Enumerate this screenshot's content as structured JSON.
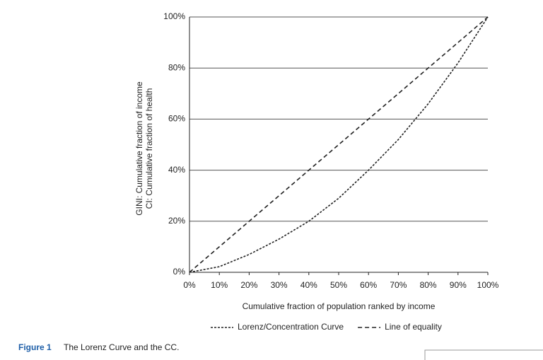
{
  "chart_data": {
    "type": "line",
    "y_label_lines": [
      "GINI: Cumulative fraction of income",
      "CI: Cumulative fraction of health"
    ],
    "x_label": "Cumulative fraction of population ranked by income",
    "x": [
      0,
      10,
      20,
      30,
      40,
      50,
      60,
      70,
      80,
      90,
      100
    ],
    "series": [
      {
        "name": "Lorenz/Concentration Curve",
        "color": "#222222",
        "line_style": "dotted",
        "values": [
          0,
          2.2,
          7,
          13,
          20,
          29,
          40,
          52,
          66,
          82,
          100
        ]
      },
      {
        "name": "Line of equality",
        "color": "#222222",
        "line_style": "dashed",
        "values": [
          0,
          10,
          20,
          30,
          40,
          50,
          60,
          70,
          80,
          90,
          100
        ]
      }
    ],
    "xlim": [
      0,
      100
    ],
    "ylim": [
      0,
      100
    ],
    "xticks": [
      {
        "value": 0,
        "label": "0%"
      },
      {
        "value": 10,
        "label": "10%"
      },
      {
        "value": 20,
        "label": "20%"
      },
      {
        "value": 30,
        "label": "30%"
      },
      {
        "value": 40,
        "label": "40%"
      },
      {
        "value": 50,
        "label": "50%"
      },
      {
        "value": 60,
        "label": "60%"
      },
      {
        "value": 70,
        "label": "70%"
      },
      {
        "value": 80,
        "label": "80%"
      },
      {
        "value": 90,
        "label": "90%"
      },
      {
        "value": 100,
        "label": "100%"
      }
    ],
    "yticks": [
      {
        "value": 0,
        "label": "0%"
      },
      {
        "value": 20,
        "label": "20%"
      },
      {
        "value": 40,
        "label": "40%"
      },
      {
        "value": 60,
        "label": "60%"
      },
      {
        "value": 80,
        "label": "80%"
      },
      {
        "value": 100,
        "label": "100%"
      }
    ],
    "grid": true,
    "legend": "bottom"
  },
  "caption": {
    "label": "Figure 1",
    "text": "The Lorenz Curve and the CC."
  }
}
